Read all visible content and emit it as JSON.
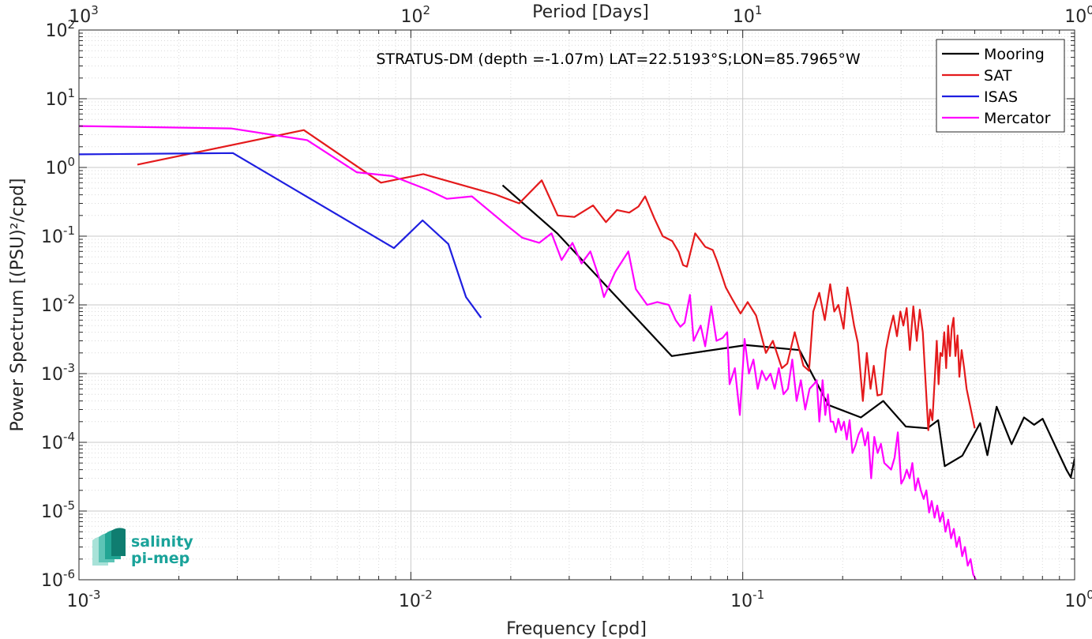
{
  "chart_data": {
    "type": "line",
    "title": "STRATUS-DM (depth =-1.07m) LAT=22.5193°S;LON=85.7965°W",
    "xlabel": "Frequency [cpd]",
    "ylabel": "Power Spectrum [(PSU)²/cpd]",
    "x2label": "Period [Days]",
    "xscale": "log",
    "yscale": "log",
    "xlim": [
      0.001,
      1
    ],
    "ylim": [
      1e-06,
      100
    ],
    "grid": true,
    "legend_position": "top-right",
    "x_ticks": [
      {
        "base": "10",
        "exp": "-3"
      },
      {
        "base": "10",
        "exp": "-2"
      },
      {
        "base": "10",
        "exp": "-1"
      },
      {
        "base": "10",
        "exp": "0"
      }
    ],
    "x2_ticks": [
      {
        "base": "10",
        "exp": "3"
      },
      {
        "base": "10",
        "exp": "2"
      },
      {
        "base": "10",
        "exp": "1"
      },
      {
        "base": "10",
        "exp": "0"
      }
    ],
    "y_ticks": [
      {
        "base": "10",
        "exp": "-6"
      },
      {
        "base": "10",
        "exp": "-5"
      },
      {
        "base": "10",
        "exp": "-4"
      },
      {
        "base": "10",
        "exp": "-3"
      },
      {
        "base": "10",
        "exp": "-2"
      },
      {
        "base": "10",
        "exp": "-1"
      },
      {
        "base": "10",
        "exp": "0"
      },
      {
        "base": "10",
        "exp": "1"
      },
      {
        "base": "10",
        "exp": "2"
      }
    ],
    "series": [
      {
        "name": "Mooring",
        "color": "#000000",
        "points": [
          [
            0.0189,
            0.55
          ],
          [
            0.0276,
            0.11
          ],
          [
            0.0611,
            0.0018
          ],
          [
            0.1024,
            0.0026
          ],
          [
            0.1483,
            0.0022
          ],
          [
            0.181,
            0.00035
          ],
          [
            0.227,
            0.00023
          ],
          [
            0.265,
            0.0004
          ],
          [
            0.31,
            0.00017
          ],
          [
            0.36,
            0.00016
          ],
          [
            0.388,
            0.00021
          ],
          [
            0.406,
            4.5e-05
          ],
          [
            0.459,
            6.4e-05
          ],
          [
            0.519,
            0.00019
          ],
          [
            0.546,
            6.5e-05
          ],
          [
            0.582,
            0.00033
          ],
          [
            0.646,
            9.4e-05
          ],
          [
            0.704,
            0.00023
          ],
          [
            0.755,
            0.00018
          ],
          [
            0.801,
            0.00022
          ],
          [
            0.891,
            7.3e-05
          ],
          [
            0.947,
            3.9e-05
          ],
          [
            0.974,
            3.1e-05
          ],
          [
            1.0,
            5.8e-05
          ]
        ]
      },
      {
        "name": "SAT",
        "color": "#e41a1c",
        "points": [
          [
            0.0015,
            1.1
          ],
          [
            0.00476,
            3.5
          ],
          [
            0.00813,
            0.6
          ],
          [
            0.0109,
            0.8
          ],
          [
            0.0181,
            0.4
          ],
          [
            0.0212,
            0.3
          ],
          [
            0.0248,
            0.65
          ],
          [
            0.0277,
            0.2
          ],
          [
            0.0311,
            0.19
          ],
          [
            0.0354,
            0.28
          ],
          [
            0.0387,
            0.16
          ],
          [
            0.0418,
            0.24
          ],
          [
            0.0455,
            0.22
          ],
          [
            0.0485,
            0.27
          ],
          [
            0.0508,
            0.38
          ],
          [
            0.0542,
            0.18
          ],
          [
            0.0574,
            0.1
          ],
          [
            0.0613,
            0.085
          ],
          [
            0.0641,
            0.059
          ],
          [
            0.0661,
            0.038
          ],
          [
            0.0679,
            0.036
          ],
          [
            0.0719,
            0.11
          ],
          [
            0.0771,
            0.07
          ],
          [
            0.0812,
            0.063
          ],
          [
            0.0836,
            0.044
          ],
          [
            0.0889,
            0.018
          ],
          [
            0.0931,
            0.012
          ],
          [
            0.0985,
            0.0075
          ],
          [
            0.1035,
            0.011
          ],
          [
            0.1097,
            0.007
          ],
          [
            0.1174,
            0.002
          ],
          [
            0.1232,
            0.003
          ],
          [
            0.1312,
            0.0012
          ],
          [
            0.1362,
            0.0014
          ],
          [
            0.1434,
            0.004
          ],
          [
            0.1523,
            0.0013
          ],
          [
            0.1584,
            0.0011
          ],
          [
            0.1631,
            0.008
          ],
          [
            0.1701,
            0.015
          ],
          [
            0.1767,
            0.006
          ],
          [
            0.1834,
            0.02
          ],
          [
            0.1887,
            0.008
          ],
          [
            0.1942,
            0.01
          ],
          [
            0.2013,
            0.0045
          ],
          [
            0.2066,
            0.018
          ],
          [
            0.2117,
            0.0095
          ],
          [
            0.2165,
            0.005
          ],
          [
            0.2223,
            0.0028
          ],
          [
            0.2301,
            0.0004
          ],
          [
            0.2365,
            0.002
          ],
          [
            0.2427,
            0.0006
          ],
          [
            0.2482,
            0.0013
          ],
          [
            0.2546,
            0.00048
          ],
          [
            0.2621,
            0.0005
          ],
          [
            0.2699,
            0.0022
          ],
          [
            0.2765,
            0.004
          ],
          [
            0.2843,
            0.007
          ],
          [
            0.2915,
            0.0035
          ],
          [
            0.2985,
            0.008
          ],
          [
            0.3048,
            0.005
          ],
          [
            0.3118,
            0.009
          ],
          [
            0.3187,
            0.0022
          ],
          [
            0.3265,
            0.0095
          ],
          [
            0.3345,
            0.003
          ],
          [
            0.3415,
            0.0085
          ],
          [
            0.3488,
            0.004
          ],
          [
            0.3565,
            0.0006
          ],
          [
            0.3624,
            0.00015
          ],
          [
            0.3672,
            0.0003
          ],
          [
            0.3729,
            0.00021
          ],
          [
            0.3792,
            0.0009
          ],
          [
            0.3842,
            0.003
          ],
          [
            0.3892,
            0.0007
          ],
          [
            0.3941,
            0.002
          ],
          [
            0.3993,
            0.0018
          ],
          [
            0.4048,
            0.004
          ],
          [
            0.4101,
            0.0012
          ],
          [
            0.4157,
            0.005
          ],
          [
            0.4211,
            0.0018
          ],
          [
            0.4262,
            0.0045
          ],
          [
            0.4318,
            0.0065
          ],
          [
            0.4374,
            0.0018
          ],
          [
            0.4438,
            0.0036
          ],
          [
            0.4495,
            0.0009
          ],
          [
            0.4567,
            0.0022
          ],
          [
            0.4648,
            0.0012
          ],
          [
            0.4727,
            0.0006
          ],
          [
            0.5,
            0.00016
          ]
        ]
      },
      {
        "name": "ISAS",
        "color": "#1f1fe0",
        "points": [
          [
            0.001,
            1.55
          ],
          [
            0.00291,
            1.62
          ],
          [
            0.00889,
            0.067
          ],
          [
            0.01085,
            0.17
          ],
          [
            0.01297,
            0.077
          ],
          [
            0.01466,
            0.013
          ],
          [
            0.01628,
            0.0065
          ]
        ]
      },
      {
        "name": "Mercator",
        "color": "#ff00ff",
        "points": [
          [
            0.001,
            4.0
          ],
          [
            0.00287,
            3.7
          ],
          [
            0.00487,
            2.5
          ],
          [
            0.00687,
            0.85
          ],
          [
            0.00879,
            0.75
          ],
          [
            0.01128,
            0.47
          ],
          [
            0.01284,
            0.35
          ],
          [
            0.01528,
            0.38
          ],
          [
            0.01958,
            0.14
          ],
          [
            0.02164,
            0.095
          ],
          [
            0.02438,
            0.08
          ],
          [
            0.02654,
            0.11
          ],
          [
            0.02846,
            0.045
          ],
          [
            0.03069,
            0.08
          ],
          [
            0.03268,
            0.04
          ],
          [
            0.03474,
            0.06
          ],
          [
            0.0369,
            0.025
          ],
          [
            0.03818,
            0.013
          ],
          [
            0.04127,
            0.03
          ],
          [
            0.04523,
            0.06
          ],
          [
            0.04763,
            0.017
          ],
          [
            0.05152,
            0.01
          ],
          [
            0.05529,
            0.011
          ],
          [
            0.05987,
            0.01
          ],
          [
            0.06279,
            0.006
          ],
          [
            0.06488,
            0.0048
          ],
          [
            0.06683,
            0.0055
          ],
          [
            0.06932,
            0.014
          ],
          [
            0.07113,
            0.003
          ],
          [
            0.07471,
            0.005
          ],
          [
            0.07705,
            0.0025
          ],
          [
            0.08038,
            0.0095
          ],
          [
            0.08332,
            0.003
          ],
          [
            0.08693,
            0.0033
          ],
          [
            0.08981,
            0.004
          ],
          [
            0.09129,
            0.0007
          ],
          [
            0.09467,
            0.0012
          ],
          [
            0.09803,
            0.00025
          ],
          [
            0.1013,
            0.0032
          ],
          [
            0.1044,
            0.001
          ],
          [
            0.1077,
            0.0016
          ],
          [
            0.1109,
            0.0006
          ],
          [
            0.1142,
            0.0011
          ],
          [
            0.1176,
            0.0008
          ],
          [
            0.1213,
            0.001
          ],
          [
            0.1248,
            0.0006
          ],
          [
            0.1285,
            0.0012
          ],
          [
            0.1327,
            0.0005
          ],
          [
            0.1368,
            0.0006
          ],
          [
            0.141,
            0.0016
          ],
          [
            0.1453,
            0.0004
          ],
          [
            0.1497,
            0.0008
          ],
          [
            0.1543,
            0.0003
          ],
          [
            0.159,
            0.0006
          ],
          [
            0.1638,
            0.0007
          ],
          [
            0.1671,
            0.0008
          ],
          [
            0.1702,
            0.0002
          ],
          [
            0.174,
            0.0008
          ],
          [
            0.1773,
            0.00025
          ],
          [
            0.1806,
            0.0005
          ],
          [
            0.184,
            0.0002
          ],
          [
            0.1873,
            0.0002
          ],
          [
            0.1907,
            0.00014
          ],
          [
            0.1942,
            0.00022
          ],
          [
            0.198,
            0.00015
          ],
          [
            0.2019,
            0.0002
          ],
          [
            0.2058,
            0.00011
          ],
          [
            0.2099,
            0.00021
          ],
          [
            0.2141,
            7e-05
          ],
          [
            0.2186,
            9e-05
          ],
          [
            0.2234,
            0.00013
          ],
          [
            0.2284,
            0.00016
          ],
          [
            0.2336,
            9e-05
          ],
          [
            0.2384,
            0.00014
          ],
          [
            0.2437,
            3e-05
          ],
          [
            0.2492,
            0.00012
          ],
          [
            0.2549,
            7e-05
          ],
          [
            0.2608,
            9.5e-05
          ],
          [
            0.2669,
            5e-05
          ],
          [
            0.2733,
            4.5e-05
          ],
          [
            0.2799,
            4e-05
          ],
          [
            0.2868,
            6e-05
          ],
          [
            0.2933,
            0.00014
          ],
          [
            0.3003,
            2.5e-05
          ],
          [
            0.3064,
            3e-05
          ],
          [
            0.3121,
            4e-05
          ],
          [
            0.3183,
            3e-05
          ],
          [
            0.3245,
            5e-05
          ],
          [
            0.3308,
            2e-05
          ],
          [
            0.3375,
            3e-05
          ],
          [
            0.344,
            2e-05
          ],
          [
            0.3508,
            1.5e-05
          ],
          [
            0.3574,
            2e-05
          ],
          [
            0.3643,
            9.5e-06
          ],
          [
            0.3711,
            1.4e-05
          ],
          [
            0.3784,
            8e-06
          ],
          [
            0.3855,
            1.2e-05
          ],
          [
            0.3928,
            7e-06
          ],
          [
            0.4005,
            9.5e-06
          ],
          [
            0.4082,
            5e-06
          ],
          [
            0.4161,
            7.5e-06
          ],
          [
            0.4243,
            4e-06
          ],
          [
            0.4325,
            5.5e-06
          ],
          [
            0.4409,
            3e-06
          ],
          [
            0.4495,
            4.2e-06
          ],
          [
            0.4585,
            2.2e-06
          ],
          [
            0.4672,
            3e-06
          ],
          [
            0.4763,
            1.6e-06
          ],
          [
            0.4858,
            2e-06
          ],
          [
            0.4946,
            1.2e-06
          ],
          [
            0.5039,
            1e-06
          ]
        ]
      }
    ]
  },
  "logo": {
    "line1": "salinity",
    "line2": "pi-mep"
  }
}
